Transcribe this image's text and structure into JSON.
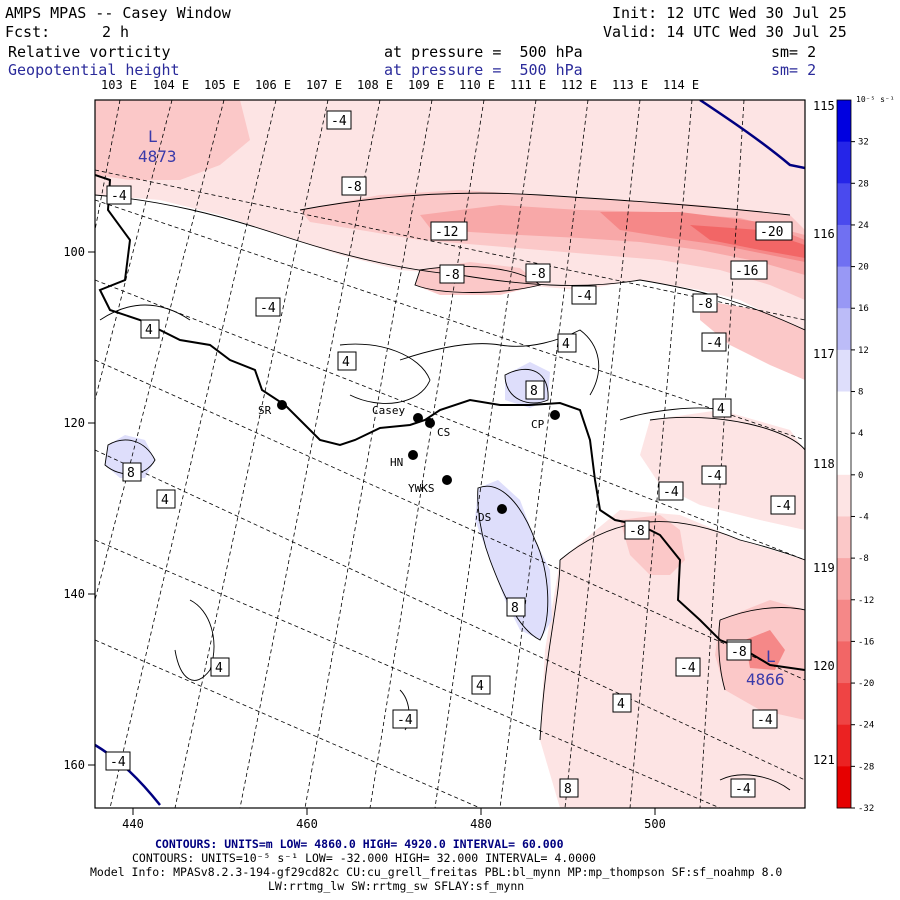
{
  "header": {
    "title": "AMPS MPAS -- Casey Window",
    "init": "Init: 12 UTC Wed 30 Jul 25",
    "fcst_label": "Fcst:",
    "fcst_value": "2 h",
    "valid": "Valid: 14 UTC Wed 30 Jul 25",
    "field1_name": "Relative vorticity",
    "field1_level": "at pressure =  500 hPa",
    "field1_sm": "sm= 2",
    "field2_name": "Geopotential height",
    "field2_level": "at pressure =  500 hPa",
    "field2_sm": "sm= 2"
  },
  "top_lon_labels": [
    "103 E",
    "104 E",
    "105 E",
    "106 E",
    "107 E",
    "108 E",
    "109 E",
    "110 E",
    "111 E",
    "112 E",
    "113 E",
    "114 E"
  ],
  "right_lon_labels": [
    "115 E",
    "116 E",
    "117 E",
    "118 E",
    "119 E",
    "120 E",
    "121 E"
  ],
  "bottom_axis_ticks": [
    "440",
    "460",
    "480",
    "500"
  ],
  "left_axis_ticks": [
    "100",
    "120",
    "140",
    "160"
  ],
  "colorbar": {
    "unit": "10⁻⁵ s⁻¹",
    "labels": [
      "32",
      "28",
      "24",
      "20",
      "16",
      "12",
      "8",
      "4",
      "0",
      "-4",
      "-8",
      "-12",
      "-16",
      "-20",
      "-24",
      "-28",
      "-32"
    ],
    "colors": [
      "#0000e0",
      "#2525e8",
      "#4a4aee",
      "#7070f2",
      "#9898f5",
      "#bcbcf8",
      "#dedefb",
      "#ffffff",
      "#ffffff",
      "#fde4e4",
      "#fbc8c8",
      "#f8a8a8",
      "#f58888",
      "#f26666",
      "#ef4444",
      "#eb2222",
      "#e60000"
    ]
  },
  "contour_labels": [
    "-4",
    "-4",
    "-8",
    "-12",
    "-20",
    "-8",
    "-8",
    "-16",
    "-4",
    "-8",
    "-4",
    "4",
    "-4",
    "4",
    "4",
    "8",
    "4",
    "8",
    "-4",
    "-4",
    "4",
    "-8",
    "-4",
    "-4",
    "8",
    "4",
    "-8",
    "-4",
    "4",
    "4",
    "-4",
    "-4",
    "-4",
    "8",
    "-4",
    "4"
  ],
  "height_labels": [
    {
      "letter": "L",
      "value": "4873"
    },
    {
      "letter": "L",
      "value": "4866"
    }
  ],
  "stations": [
    {
      "name": "SR"
    },
    {
      "name": "Casey"
    },
    {
      "name": "CS"
    },
    {
      "name": "CP"
    },
    {
      "name": "HN"
    },
    {
      "name": "YWKS"
    },
    {
      "name": "DS"
    }
  ],
  "footer": {
    "contours_height": "CONTOURS:  UNITS=m  LOW=  4860.0          HIGH=  4920.0          INTERVAL=   60.000",
    "contours_vort": "CONTOURS:  UNITS=10⁻⁵ s⁻¹   LOW= -32.000          HIGH=  32.000          INTERVAL=   4.0000",
    "model_info": "Model Info: MPASv8.2.3-194-gf29cd82c CU:cu_grell_freitas PBL:bl_mynn MP:mp_thompson SF:sf_noahmp 8.0",
    "model_info2": "LW:rrtmg_lw SW:rrtmg_sw SFLAY:sf_mynn"
  }
}
